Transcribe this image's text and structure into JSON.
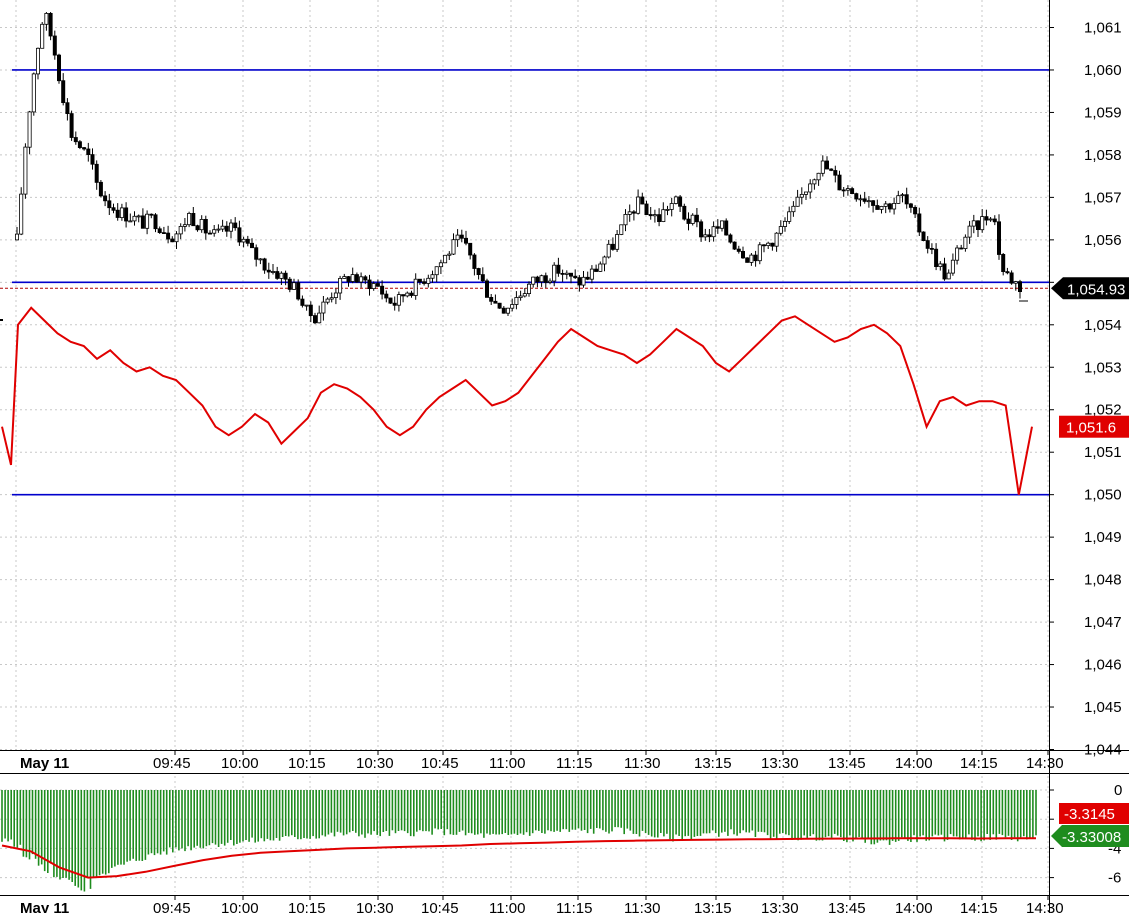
{
  "chart_data": [
    {
      "type": "candlestick",
      "panel": "price",
      "ylim": [
        1043.9,
        1061.5
      ],
      "yticks": [
        "1,044",
        "1,045",
        "1,046",
        "1,047",
        "1,048",
        "1,049",
        "1,050",
        "1,051",
        "1,052",
        "1,053",
        "1,054",
        "1,055",
        "1,056",
        "1,057",
        "1,058",
        "1,059",
        "1,060",
        "1,061"
      ],
      "ytick_values": [
        1044,
        1045,
        1046,
        1047,
        1048,
        1049,
        1050,
        1051,
        1052,
        1053,
        1054,
        1055,
        1056,
        1057,
        1058,
        1059,
        1060,
        1061
      ],
      "date_label": "May 11",
      "xticks": [
        "09:45",
        "10:00",
        "10:15",
        "10:30",
        "10:45",
        "11:00",
        "11:15",
        "11:30",
        "13:15",
        "13:30",
        "13:45",
        "14:00",
        "14:15",
        "14:30"
      ],
      "grid": true,
      "horizontal_lines": [
        1060.0,
        1055.0,
        1050.0
      ],
      "dashed_reference": 1054.93,
      "series": [
        {
          "style": "candlestick",
          "color": "#000000",
          "close_path": [
            1056.0,
            1058.4,
            1060.2,
            1061.4,
            1060.6,
            1059.5,
            1058.5,
            1058.2,
            1057.9,
            1057.2,
            1056.9,
            1056.7,
            1056.6,
            1056.5,
            1056.4,
            1056.5,
            1056.3,
            1056.1,
            1056.2,
            1056.6,
            1056.4,
            1056.2,
            1056.1,
            1056.2,
            1056.3,
            1056.0,
            1055.7,
            1055.5,
            1055.3,
            1055.2,
            1055.0,
            1054.8,
            1054.3,
            1054.2,
            1054.5,
            1054.8,
            1055.0,
            1055.2,
            1055.0,
            1055.0,
            1054.9,
            1054.6,
            1054.5,
            1054.8,
            1054.9,
            1055.1,
            1055.3,
            1055.5,
            1055.8,
            1056.0,
            1055.7,
            1055.2,
            1054.8,
            1054.5,
            1054.4,
            1054.6,
            1054.8,
            1055.0,
            1055.1,
            1055.2,
            1055.3,
            1055.1,
            1055.0,
            1055.1,
            1055.3,
            1055.6,
            1055.9,
            1056.3,
            1056.7,
            1056.9,
            1056.6,
            1056.5,
            1056.8,
            1056.9,
            1056.5,
            1056.4,
            1056.1,
            1056.2,
            1056.3,
            1056.0,
            1055.8,
            1055.6,
            1055.7,
            1055.9,
            1056.1,
            1056.4,
            1056.7,
            1057.1,
            1057.5,
            1057.8,
            1057.6,
            1057.3,
            1057.2,
            1057.1,
            1057.0,
            1056.9,
            1056.8,
            1056.9,
            1057.0,
            1056.6,
            1056.2,
            1055.8,
            1055.4,
            1055.1,
            1055.7,
            1056.1,
            1056.3,
            1056.5,
            1056.7,
            1055.3,
            1055.1,
            1054.9
          ]
        },
        {
          "style": "line",
          "color": "#e00000",
          "values": [
            1051.6,
            1050.7,
            1054.0,
            1054.4,
            1054.1,
            1053.8,
            1053.6,
            1053.5,
            1053.2,
            1053.4,
            1053.1,
            1052.9,
            1053.0,
            1052.8,
            1052.7,
            1052.4,
            1052.1,
            1051.6,
            1051.4,
            1051.6,
            1051.9,
            1051.7,
            1051.2,
            1051.5,
            1051.8,
            1052.4,
            1052.6,
            1052.5,
            1052.3,
            1052.0,
            1051.6,
            1051.4,
            1051.6,
            1052.0,
            1052.3,
            1052.5,
            1052.7,
            1052.4,
            1052.1,
            1052.2,
            1052.4,
            1052.8,
            1053.2,
            1053.6,
            1053.9,
            1053.7,
            1053.5,
            1053.4,
            1053.3,
            1053.1,
            1053.3,
            1053.6,
            1053.9,
            1053.7,
            1053.5,
            1053.1,
            1052.9,
            1053.2,
            1053.5,
            1053.8,
            1054.1,
            1054.2,
            1054.0,
            1053.8,
            1053.6,
            1053.7,
            1053.9,
            1054.0,
            1053.8,
            1053.5,
            1052.6,
            1051.6,
            1052.2,
            1052.3,
            1052.1,
            1052.2,
            1052.2,
            1052.1,
            1050.0,
            1051.6
          ]
        }
      ],
      "last_price_label": "1,054.93",
      "red_line_label": "1,051.6",
      "colors": {
        "grid": "#c8c8c8",
        "levels": "#0000cc",
        "candles": "#000000",
        "redline": "#e00000"
      }
    },
    {
      "type": "bar",
      "panel": "indicator",
      "ylim": [
        -6.8,
        0.4
      ],
      "yticks": [
        "0",
        "-2",
        "-4",
        "-6"
      ],
      "ytick_values": [
        0,
        -2,
        -4,
        -6
      ],
      "xticks": [
        "09:45",
        "10:00",
        "10:15",
        "10:30",
        "10:45",
        "11:00",
        "11:15",
        "11:30",
        "13:15",
        "13:30",
        "13:45",
        "14:00",
        "14:15",
        "14:30"
      ],
      "date_label": "May 11",
      "series": [
        {
          "style": "bar",
          "color": "#1e8c1e",
          "values": [
            -3.5,
            -3.6,
            -4.5,
            -5.5,
            -6.2,
            -5.8,
            -5.3,
            -4.8,
            -4.4,
            -4.1,
            -3.9,
            -3.7,
            -3.6,
            -3.5,
            -3.4,
            -3.3,
            -3.2,
            -3.1,
            -3.0,
            -3.05,
            -3.0,
            -2.95,
            -2.9,
            -2.85,
            -3.0,
            -3.1,
            -3.2,
            -3.0,
            -2.9,
            -2.85,
            -2.8,
            -2.8,
            -2.75,
            -2.9,
            -3.1,
            -3.3,
            -3.2,
            -3.0,
            -2.9,
            -3.0,
            -3.1,
            -3.2,
            -3.3,
            -3.2,
            -3.3,
            -3.5,
            -3.6,
            -3.4,
            -3.3,
            -3.3,
            -3.2,
            -3.3,
            -3.2,
            -3.3,
            -3.3
          ]
        },
        {
          "style": "line",
          "color": "#e00000",
          "values": [
            -3.8,
            -4.2,
            -5.3,
            -6.0,
            -5.9,
            -5.6,
            -5.2,
            -4.8,
            -4.5,
            -4.3,
            -4.2,
            -4.1,
            -4.0,
            -3.95,
            -3.9,
            -3.85,
            -3.8,
            -3.7,
            -3.65,
            -3.6,
            -3.55,
            -3.5,
            -3.47,
            -3.44,
            -3.42,
            -3.4,
            -3.38,
            -3.36,
            -3.34,
            -3.33,
            -3.32,
            -3.31,
            -3.3,
            -3.31,
            -3.32,
            -3.31,
            -3.31
          ]
        }
      ],
      "red_value_label": "-3.3145",
      "green_value_label": "-3.33008",
      "colors": {
        "bars": "#1e8c1e",
        "line": "#e00000",
        "red_badge": "#e00000",
        "green_badge": "#1e8c1e"
      }
    }
  ]
}
